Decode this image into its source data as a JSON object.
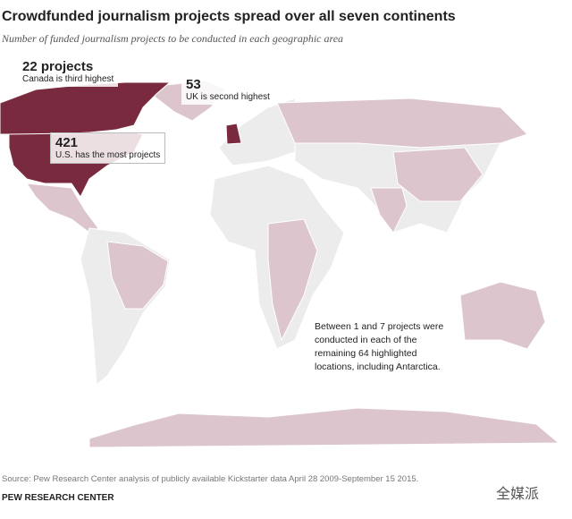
{
  "header": {
    "title": "Crowdfunded journalism projects spread over all seven continents",
    "subtitle": "Number of funded journalism projects to be conducted in each geographic area"
  },
  "annotations": [
    {
      "value": "22 projects",
      "note": "Canada is third highest"
    },
    {
      "value": "53",
      "note": "UK is second highest"
    },
    {
      "value": "421",
      "note": "U.S. has the most projects"
    }
  ],
  "note": "Between 1 and 7 projects were conducted in each of the remaining 64 highlighted locations, including Antarctica.",
  "source": "Source: Pew Research Center analysis of publicly available Kickstarter data April 28 2009-September 15 2015.",
  "credit": "PEW RESEARCH CENTER",
  "watermark": "全媒派"
}
